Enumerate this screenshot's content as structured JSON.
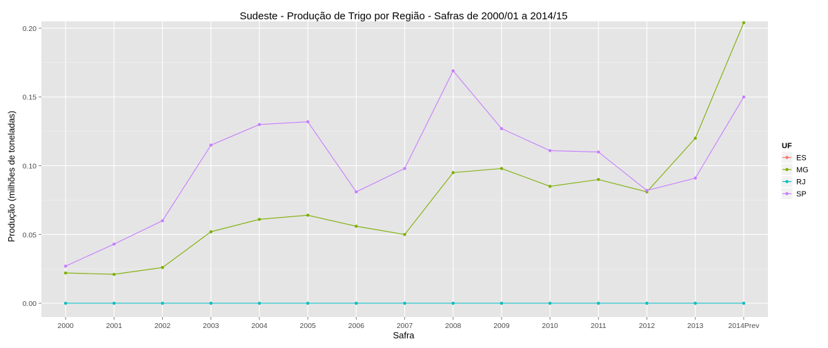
{
  "colors": {
    "panel_bg": "#E5E5E5",
    "grid_major": "#FFFFFF",
    "grid_minor": "#F2F2F2",
    "axis_text": "#4D4D4D",
    "ES": "#F8766D",
    "MG": "#7CAE00",
    "RJ": "#00BFC4",
    "SP": "#C77CFF"
  },
  "chart_data": {
    "type": "line",
    "title": "Sudeste  - Produção de Trigo por Região - Safras de 2000/01 a 2014/15",
    "xlabel": "Safra",
    "ylabel": "Produção (milhões de toneladas)",
    "categories": [
      "2000",
      "2001",
      "2002",
      "2003",
      "2004",
      "2005",
      "2006",
      "2007",
      "2008",
      "2009",
      "2010",
      "2011",
      "2012",
      "2013",
      "2014Prev"
    ],
    "ylim": [
      -0.01,
      0.205
    ],
    "yticks": [
      0.0,
      0.05,
      0.1,
      0.15,
      0.2
    ],
    "ytick_labels": [
      "0.00",
      "0.05",
      "0.10",
      "0.15",
      "0.20"
    ],
    "grid": true,
    "legend_title": "UF",
    "legend_position": "right",
    "series": [
      {
        "name": "ES",
        "color": "#F8766D",
        "values": [
          0,
          0,
          0,
          0,
          0,
          0,
          0,
          0,
          0,
          0,
          0,
          0,
          0,
          0,
          0
        ]
      },
      {
        "name": "MG",
        "color": "#7CAE00",
        "values": [
          0.022,
          0.021,
          0.026,
          0.052,
          0.061,
          0.064,
          0.056,
          0.05,
          0.095,
          0.098,
          0.085,
          0.09,
          0.081,
          0.12,
          0.204
        ]
      },
      {
        "name": "RJ",
        "color": "#00BFC4",
        "values": [
          0,
          0,
          0,
          0,
          0,
          0,
          0,
          0,
          0,
          0,
          0,
          0,
          0,
          0,
          0
        ]
      },
      {
        "name": "SP",
        "color": "#C77CFF",
        "values": [
          0.027,
          0.043,
          0.06,
          0.115,
          0.13,
          0.132,
          0.081,
          0.098,
          0.169,
          0.127,
          0.111,
          0.11,
          0.082,
          0.091,
          0.15
        ]
      }
    ]
  }
}
